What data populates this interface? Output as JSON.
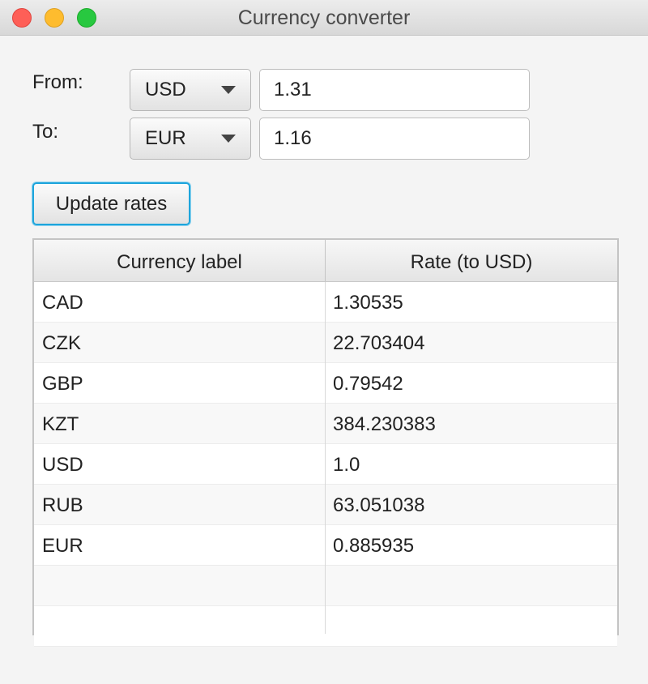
{
  "window": {
    "title": "Currency converter"
  },
  "form": {
    "from_label": "From:",
    "to_label": "To:",
    "from_currency": "USD",
    "from_amount": "1.31",
    "to_currency": "EUR",
    "to_amount": "1.16",
    "update_button": "Update rates"
  },
  "table": {
    "headers": [
      "Currency label",
      "Rate (to USD)"
    ],
    "rows": [
      {
        "label": "CAD",
        "rate": "1.30535"
      },
      {
        "label": "CZK",
        "rate": "22.703404"
      },
      {
        "label": "GBP",
        "rate": "0.79542"
      },
      {
        "label": "KZT",
        "rate": "384.230383"
      },
      {
        "label": "USD",
        "rate": "1.0"
      },
      {
        "label": "RUB",
        "rate": "63.051038"
      },
      {
        "label": "EUR",
        "rate": "0.885935"
      },
      {
        "label": "",
        "rate": ""
      },
      {
        "label": "",
        "rate": ""
      }
    ]
  },
  "colors": {
    "focus_ring": "#1ea5dc",
    "close": "#fe5f57",
    "minimize": "#febc2e",
    "maximize": "#28c840"
  },
  "icons": {
    "close": "close-icon",
    "minimize": "minimize-icon",
    "maximize": "maximize-icon",
    "dropdown": "chevron-down-icon"
  }
}
